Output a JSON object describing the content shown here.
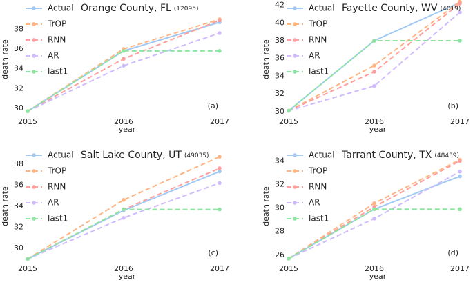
{
  "chart_data": [
    {
      "type": "line",
      "title": "Orange County, FL",
      "subtitle": "(12095)",
      "panel_label": "(a)",
      "xlabel": "year",
      "ylabel": "death rate",
      "categories": [
        "2015",
        "2016",
        "2017"
      ],
      "ylim": [
        29.3,
        40.6
      ],
      "yticks": [
        30,
        32,
        34,
        36,
        38
      ],
      "grid": false,
      "legend": "upper left",
      "series": [
        {
          "name": "Actual",
          "color": "#a1c9f4",
          "linestyle": "solid",
          "values": [
            29.7,
            35.8,
            38.7
          ]
        },
        {
          "name": "TrOP",
          "color": "#ffb482",
          "linestyle": "dashed",
          "values": [
            29.7,
            36.0,
            39.0
          ]
        },
        {
          "name": "RNN",
          "color": "#ff9f9b",
          "linestyle": "dashed",
          "values": [
            29.7,
            35.0,
            38.9
          ]
        },
        {
          "name": "AR",
          "color": "#d0bbff",
          "linestyle": "dashed",
          "values": [
            29.7,
            34.3,
            37.6
          ]
        },
        {
          "name": "last1",
          "color": "#8de5a1",
          "linestyle": "dashed",
          "values": [
            29.7,
            35.8,
            35.8
          ]
        }
      ]
    },
    {
      "type": "line",
      "title": "Fayette County, WV",
      "subtitle": "(4019)",
      "panel_label": "(b)",
      "xlabel": "year",
      "ylabel": "death rate",
      "categories": [
        "2015",
        "2016",
        "2017"
      ],
      "ylim": [
        29.6,
        42.2
      ],
      "yticks": [
        30,
        32,
        34,
        36,
        38,
        40,
        42
      ],
      "grid": false,
      "legend": "upper left",
      "series": [
        {
          "name": "Actual",
          "color": "#a1c9f4",
          "linestyle": "solid",
          "values": [
            30.1,
            38.0,
            42.3
          ]
        },
        {
          "name": "TrOP",
          "color": "#ffb482",
          "linestyle": "dashed",
          "values": [
            30.1,
            35.2,
            42.4
          ]
        },
        {
          "name": "RNN",
          "color": "#ff9f9b",
          "linestyle": "dashed",
          "values": [
            30.1,
            34.5,
            42.2
          ]
        },
        {
          "name": "AR",
          "color": "#d0bbff",
          "linestyle": "dashed",
          "values": [
            30.1,
            32.9,
            41.2
          ]
        },
        {
          "name": "last1",
          "color": "#8de5a1",
          "linestyle": "dashed",
          "values": [
            30.1,
            38.0,
            38.0
          ]
        }
      ]
    },
    {
      "type": "line",
      "title": "Salt Lake County, UT",
      "subtitle": "(49035)",
      "panel_label": "(c)",
      "xlabel": "year",
      "ylabel": "death rate",
      "categories": [
        "2015",
        "2016",
        "2017"
      ],
      "ylim": [
        28.7,
        39.3
      ],
      "yticks": [
        30,
        32,
        34,
        36,
        38
      ],
      "grid": false,
      "legend": "upper left",
      "series": [
        {
          "name": "Actual",
          "color": "#a1c9f4",
          "linestyle": "solid",
          "values": [
            29.0,
            33.6,
            37.3
          ]
        },
        {
          "name": "TrOP",
          "color": "#ffb482",
          "linestyle": "dashed",
          "values": [
            29.0,
            34.6,
            38.7
          ]
        },
        {
          "name": "RNN",
          "color": "#ff9f9b",
          "linestyle": "dashed",
          "values": [
            29.0,
            33.7,
            37.6
          ]
        },
        {
          "name": "AR",
          "color": "#d0bbff",
          "linestyle": "dashed",
          "values": [
            29.0,
            32.9,
            36.2
          ]
        },
        {
          "name": "last1",
          "color": "#8de5a1",
          "linestyle": "dashed",
          "values": [
            29.0,
            33.7,
            33.7
          ]
        }
      ]
    },
    {
      "type": "line",
      "title": "Tarrant County, TX",
      "subtitle": "(48439)",
      "panel_label": "(d)",
      "xlabel": "year",
      "ylabel": "death rate",
      "categories": [
        "2015",
        "2016",
        "2017"
      ],
      "ylim": [
        25.4,
        34.9
      ],
      "yticks": [
        26,
        28,
        30,
        32,
        34
      ],
      "grid": false,
      "legend": "upper left",
      "series": [
        {
          "name": "Actual",
          "color": "#a1c9f4",
          "linestyle": "solid",
          "values": [
            25.7,
            29.9,
            32.7
          ]
        },
        {
          "name": "TrOP",
          "color": "#ffb482",
          "linestyle": "dashed",
          "values": [
            25.7,
            30.4,
            34.1
          ]
        },
        {
          "name": "RNN",
          "color": "#ff9f9b",
          "linestyle": "dashed",
          "values": [
            25.7,
            30.1,
            34.0
          ]
        },
        {
          "name": "AR",
          "color": "#d0bbff",
          "linestyle": "dashed",
          "values": [
            25.7,
            29.1,
            33.1
          ]
        },
        {
          "name": "last1",
          "color": "#8de5a1",
          "linestyle": "dashed",
          "values": [
            25.7,
            29.9,
            29.9
          ]
        }
      ]
    }
  ]
}
